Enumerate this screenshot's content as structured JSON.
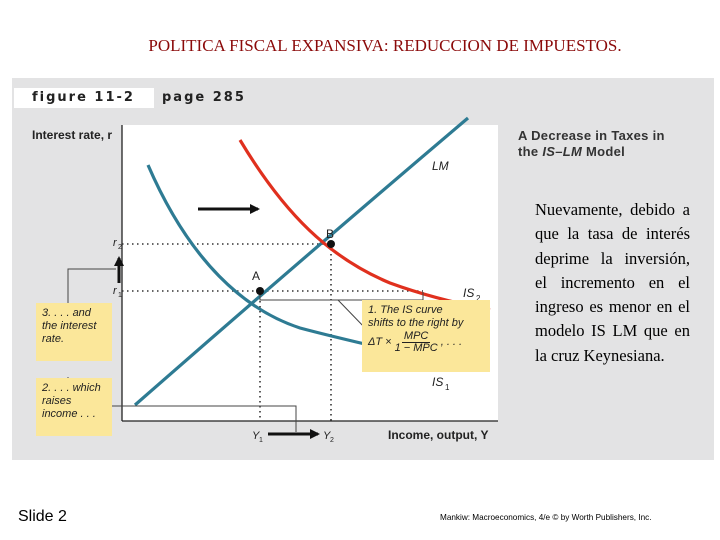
{
  "slide": {
    "title": "POLITICA FISCAL EXPANSIVA: REDUCCION DE IMPUESTOS.",
    "number_label": "Slide 2",
    "credit": "Mankiw: Macroeconomics, 4/e © by Worth Publishers, Inc.",
    "explanation": "Nuevamente, debido a que la tasa de interés deprime la inversión, el incremento en el ingreso es menor en el modelo IS LM que en la cruz Keynesiana."
  },
  "figure": {
    "label": "figure 11-2",
    "page": "page 285",
    "title_line1": "A Decrease in Taxes in",
    "title_line2_prefix": "the ",
    "title_line2_italic": "IS–LM",
    "title_line2_suffix": " Model",
    "y_axis_label": "Interest rate, r",
    "x_axis_label": "Income, output, Y",
    "curves": {
      "lm": "LM",
      "is1": "IS",
      "is1_sub": "1",
      "is2": "IS",
      "is2_sub": "2"
    },
    "points": {
      "a": "A",
      "b": "B"
    },
    "ticks": {
      "r1": "r",
      "r1_sub": "1",
      "r2": "r",
      "r2_sub": "2",
      "y1": "Y",
      "y1_sub": "1",
      "y2": "Y",
      "y2_sub": "2"
    },
    "notes": {
      "note1_line1": "1. The IS curve",
      "note1_line2": "shifts to the right by",
      "note1_delta": "ΔT ×",
      "note1_num": "MPC",
      "note1_den": "1 − MPC",
      "note1_tail": ", . . .",
      "note2_line1": "2. . . . which",
      "note2_line2": "raises",
      "note2_line3": "income . . .",
      "note3_line1": "3. . . . and",
      "note3_line2": "the interest",
      "note3_line3": "rate."
    },
    "colors": {
      "lm_curve": "#2e7b93",
      "is1_curve": "#2e7b93",
      "is2_curve": "#e0301e",
      "note_fill": "#fbe79a",
      "panel": "#e3e3e4"
    }
  }
}
